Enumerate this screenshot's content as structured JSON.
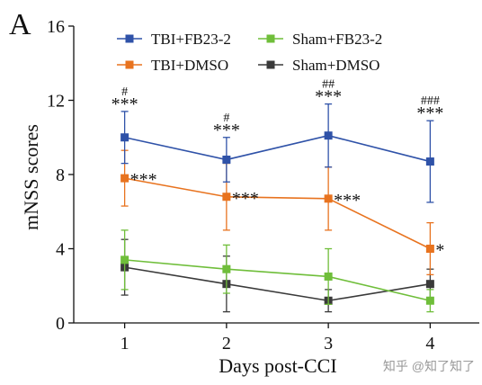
{
  "panel_label": "A",
  "watermark": "知乎 @知了知了",
  "chart_data": {
    "type": "line",
    "title": "",
    "xlabel": "Days post-CCI",
    "ylabel": "mNSS scores",
    "x": [
      1,
      2,
      3,
      4
    ],
    "x_tick_labels": [
      "1",
      "2",
      "3",
      "4"
    ],
    "xlim": [
      0.5,
      4.5
    ],
    "ylim": [
      0,
      16
    ],
    "y_ticks": [
      0,
      4,
      8,
      12,
      16
    ],
    "y_tick_labels": [
      "0",
      "4",
      "8",
      "12",
      "16"
    ],
    "grid": false,
    "legend_placement": "top",
    "series": [
      {
        "name": "TBI+FB23-2",
        "color": "#2f52a8",
        "values": [
          10.0,
          8.8,
          10.1,
          8.7
        ],
        "error": [
          1.4,
          1.2,
          1.7,
          2.2
        ]
      },
      {
        "name": "TBI+DMSO",
        "color": "#e8731f",
        "values": [
          7.8,
          6.8,
          6.7,
          4.0
        ],
        "error": [
          1.5,
          1.8,
          1.7,
          1.4
        ]
      },
      {
        "name": "Sham+FB23-2",
        "color": "#6fbe3a",
        "values": [
          3.4,
          2.9,
          2.5,
          1.2
        ],
        "error": [
          1.6,
          1.3,
          1.5,
          0.6
        ]
      },
      {
        "name": "Sham+DMSO",
        "color": "#3a3a3a",
        "values": [
          3.0,
          2.1,
          1.2,
          2.1
        ],
        "error": [
          1.5,
          1.5,
          0.6,
          0.8
        ]
      }
    ],
    "annotations": [
      {
        "x": 1,
        "text": "#"
      },
      {
        "x": 1,
        "text": "***"
      },
      {
        "x": 2,
        "text": "#"
      },
      {
        "x": 2,
        "text": "***"
      },
      {
        "x": 3,
        "text": "##"
      },
      {
        "x": 3,
        "text": "***"
      },
      {
        "x": 4,
        "text": "###"
      },
      {
        "x": 4,
        "text": "***"
      },
      {
        "x": 1,
        "text": "***"
      },
      {
        "x": 2,
        "text": "***"
      },
      {
        "x": 3,
        "text": "***"
      },
      {
        "x": 4,
        "text": "*"
      }
    ]
  }
}
